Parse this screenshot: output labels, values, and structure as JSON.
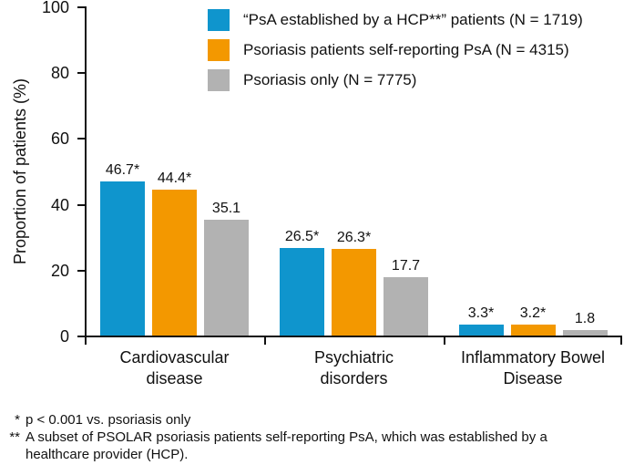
{
  "chart_data": {
    "type": "bar",
    "title": "",
    "ylabel": "Proportion of patients (%)",
    "xlabel": "",
    "ylim": [
      0,
      100
    ],
    "yticks": [
      0,
      20,
      40,
      60,
      80,
      100
    ],
    "grid": false,
    "legend_position": "top",
    "axis_color": "#111111",
    "categories": [
      {
        "line1": "Cardiovascular",
        "line2": "disease"
      },
      {
        "line1": "Psychiatric",
        "line2": "disorders"
      },
      {
        "line1": "Inflammatory Bowel",
        "line2": "Disease"
      }
    ],
    "series": [
      {
        "name": "“PsA established by a HCP**” patients (N = 1719)",
        "color": "#0f95cd",
        "values": [
          46.7,
          26.5,
          3.3
        ],
        "labels": [
          "46.7*",
          "26.5*",
          "3.3*"
        ]
      },
      {
        "name": "Psoriasis patients self-reporting PsA (N = 4315)",
        "color": "#f39800",
        "values": [
          44.4,
          26.3,
          3.2
        ],
        "labels": [
          "44.4*",
          "26.3*",
          "3.2*"
        ]
      },
      {
        "name": "Psoriasis only (N = 7775)",
        "color": "#b2b2b2",
        "values": [
          35.1,
          17.7,
          1.8
        ],
        "labels": [
          "35.1",
          "17.7",
          "1.8"
        ]
      }
    ]
  },
  "footnotes": [
    {
      "marker": "*",
      "text": "p < 0.001 vs. psoriasis only"
    },
    {
      "marker": "**",
      "text": "A subset of PSOLAR psoriasis patients self-reporting PsA, which was established by a healthcare provider (HCP)."
    }
  ]
}
